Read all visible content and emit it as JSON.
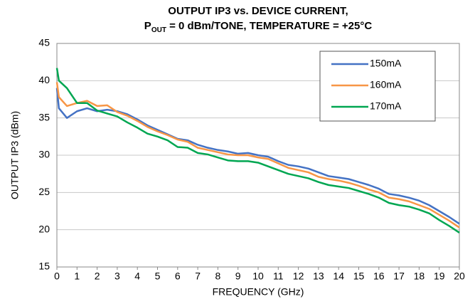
{
  "chart_data": {
    "type": "line",
    "title": "OUTPUT IP3 vs. DEVICE CURRENT,",
    "subtitle": [
      "P",
      "OUT",
      " = 0 dBm/TONE, TEMPERATURE = +25°C"
    ],
    "x_label": "FREQUENCY (GHz)",
    "y_label": "OUTPUT IP3 (dBm)",
    "x": [
      0,
      0.1,
      0.5,
      1,
      1.5,
      2,
      2.5,
      3,
      3.5,
      4,
      4.5,
      5,
      5.5,
      6,
      6.5,
      7,
      7.5,
      8,
      8.5,
      9,
      9.5,
      10,
      10.5,
      11,
      11.5,
      12,
      12.5,
      13,
      13.5,
      14,
      14.5,
      15,
      15.5,
      16,
      16.5,
      17,
      17.5,
      18,
      18.5,
      19,
      19.5,
      20
    ],
    "series": [
      {
        "name": "150mA",
        "color": "#4472c4",
        "values": [
          39.0,
          36.3,
          35.0,
          35.9,
          36.3,
          35.9,
          36.1,
          35.9,
          35.5,
          34.8,
          34.0,
          33.4,
          32.8,
          32.2,
          32.0,
          31.4,
          31.0,
          30.7,
          30.5,
          30.2,
          30.3,
          30.0,
          29.8,
          29.2,
          28.7,
          28.5,
          28.2,
          27.7,
          27.2,
          27.0,
          26.8,
          26.4,
          26.0,
          25.5,
          24.8,
          24.6,
          24.3,
          23.9,
          23.3,
          22.5,
          21.7,
          20.8
        ]
      },
      {
        "name": "160mA",
        "color": "#f79646",
        "values": [
          39.8,
          37.8,
          36.6,
          37.0,
          37.3,
          36.6,
          36.7,
          35.8,
          35.3,
          34.6,
          33.8,
          33.2,
          32.7,
          32.1,
          31.8,
          31.0,
          30.7,
          30.4,
          30.1,
          30.0,
          30.0,
          29.7,
          29.5,
          28.9,
          28.3,
          28.0,
          27.7,
          27.1,
          26.8,
          26.6,
          26.3,
          25.9,
          25.4,
          25.0,
          24.3,
          24.1,
          23.8,
          23.3,
          22.8,
          22.0,
          21.2,
          20.3
        ]
      },
      {
        "name": "170mA",
        "color": "#00a651",
        "values": [
          41.7,
          40.0,
          39.0,
          37.0,
          37.0,
          36.0,
          35.6,
          35.2,
          34.4,
          33.7,
          32.9,
          32.5,
          32.0,
          31.1,
          31.0,
          30.3,
          30.1,
          29.7,
          29.3,
          29.2,
          29.2,
          29.0,
          28.5,
          28.0,
          27.5,
          27.2,
          26.9,
          26.4,
          26.0,
          25.8,
          25.6,
          25.2,
          24.8,
          24.3,
          23.6,
          23.3,
          23.1,
          22.7,
          22.2,
          21.3,
          20.5,
          19.6
        ]
      }
    ],
    "xlim": [
      0,
      20
    ],
    "xticks": [
      0,
      1,
      2,
      3,
      4,
      5,
      6,
      7,
      8,
      9,
      10,
      11,
      12,
      13,
      14,
      15,
      16,
      17,
      18,
      19,
      20
    ],
    "ylim": [
      15,
      45
    ],
    "yticks": [
      15,
      20,
      25,
      30,
      35,
      40,
      45
    ],
    "grid": true,
    "legend": "top-right"
  }
}
